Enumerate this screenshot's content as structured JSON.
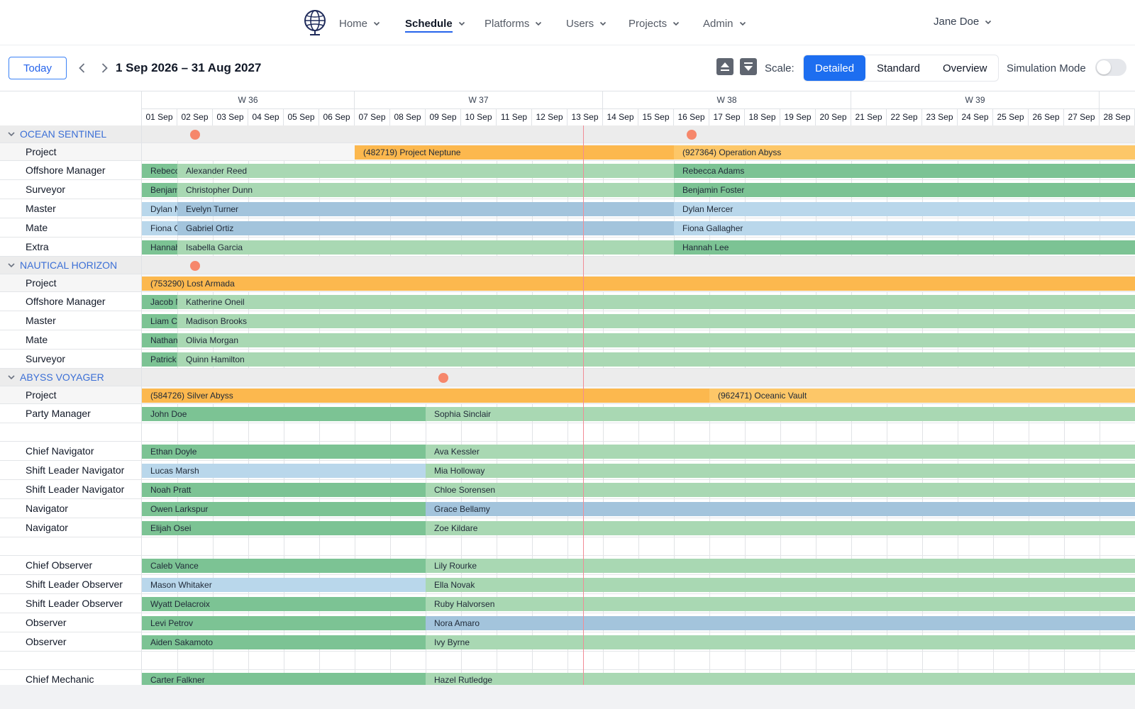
{
  "nav": {
    "logo_icon": "globe-logo-icon",
    "items": [
      {
        "label": "Home",
        "active": false
      },
      {
        "label": "Schedule",
        "active": true
      },
      {
        "label": "Platforms",
        "active": false
      },
      {
        "label": "Users",
        "active": false
      },
      {
        "label": "Projects",
        "active": false
      },
      {
        "label": "Admin",
        "active": false
      }
    ],
    "user": "Jane Doe"
  },
  "toolbar": {
    "today_label": "Today",
    "date_range": "1 Sep 2026 – 31 Aug 2027",
    "expand_icon": "expand-all-icon",
    "collapse_icon": "collapse-all-icon",
    "scale_label": "Scale:",
    "scale_options": [
      "Detailed",
      "Standard",
      "Overview"
    ],
    "scale_selected": "Detailed",
    "simulation_label": "Simulation Mode",
    "simulation_on": false
  },
  "timeline": {
    "weeks": [
      "W 36",
      "W 37",
      "W 38",
      "W 39"
    ],
    "days": [
      "01 Sep",
      "02 Sep",
      "03 Sep",
      "04 Sep",
      "05 Sep",
      "06 Sep",
      "07 Sep",
      "08 Sep",
      "09 Sep",
      "10 Sep",
      "11 Sep",
      "12 Sep",
      "13 Sep",
      "14 Sep",
      "15 Sep",
      "16 Sep",
      "17 Sep",
      "18 Sep",
      "19 Sep",
      "20 Sep",
      "21 Sep",
      "22 Sep",
      "23 Sep",
      "24 Sep",
      "25 Sep",
      "26 Sep",
      "27 Sep",
      "28 Sep"
    ],
    "today": "13 Sep"
  },
  "colors": {
    "project": "#fcb84e",
    "project_alt": "#fdc768",
    "green_dark": "#7cc394",
    "green_light": "#a9d8b3",
    "blue_dark": "#a3c4dc",
    "blue_light": "#b9d7eb",
    "marker": "#f6876b",
    "group_title": "#3b6fd6"
  },
  "rows": [
    {
      "type": "group",
      "label": "OCEAN SENTINEL",
      "markers": [
        "02 Sep",
        "16 Sep"
      ]
    },
    {
      "type": "project",
      "label": "Project",
      "bars": [
        {
          "text": "(482719) Project Neptune",
          "start": "07 Sep",
          "end": "16 Sep",
          "tone": "project"
        },
        {
          "text": "(927364) Operation Abyss",
          "start": "16 Sep",
          "end": "end",
          "tone": "project_alt"
        }
      ]
    },
    {
      "type": "role",
      "label": "Offshore Manager",
      "bars": [
        {
          "text": "Rebecca Adams",
          "start": "01 Sep",
          "end": "02 Sep",
          "tone": "green_dark"
        },
        {
          "text": "Alexander Reed",
          "start": "02 Sep",
          "end": "16 Sep",
          "tone": "green_light"
        },
        {
          "text": "Rebecca Adams",
          "start": "16 Sep",
          "end": "end",
          "tone": "green_dark"
        }
      ]
    },
    {
      "type": "role",
      "label": "Surveyor",
      "bars": [
        {
          "text": "Benjamin Foster",
          "start": "01 Sep",
          "end": "02 Sep",
          "tone": "green_dark"
        },
        {
          "text": "Christopher Dunn",
          "start": "02 Sep",
          "end": "16 Sep",
          "tone": "green_light"
        },
        {
          "text": "Benjamin Foster",
          "start": "16 Sep",
          "end": "end",
          "tone": "green_dark"
        }
      ]
    },
    {
      "type": "role",
      "label": "Master",
      "bars": [
        {
          "text": "Dylan Mercer",
          "start": "01 Sep",
          "end": "02 Sep",
          "tone": "blue_light"
        },
        {
          "text": "Evelyn Turner",
          "start": "02 Sep",
          "end": "16 Sep",
          "tone": "blue_dark"
        },
        {
          "text": "Dylan Mercer",
          "start": "16 Sep",
          "end": "end",
          "tone": "blue_light"
        }
      ]
    },
    {
      "type": "role",
      "label": "Mate",
      "bars": [
        {
          "text": "Fiona Gallagher",
          "start": "01 Sep",
          "end": "02 Sep",
          "tone": "blue_light"
        },
        {
          "text": "Gabriel Ortiz",
          "start": "02 Sep",
          "end": "16 Sep",
          "tone": "blue_dark"
        },
        {
          "text": "Fiona Gallagher",
          "start": "16 Sep",
          "end": "end",
          "tone": "blue_light"
        }
      ]
    },
    {
      "type": "role",
      "label": "Extra",
      "bars": [
        {
          "text": "Hannah Lee",
          "start": "01 Sep",
          "end": "02 Sep",
          "tone": "green_dark"
        },
        {
          "text": "Isabella Garcia",
          "start": "02 Sep",
          "end": "16 Sep",
          "tone": "green_light"
        },
        {
          "text": "Hannah Lee",
          "start": "16 Sep",
          "end": "end",
          "tone": "green_dark"
        }
      ]
    },
    {
      "type": "group",
      "label": "NAUTICAL HORIZON",
      "markers": [
        "02 Sep"
      ]
    },
    {
      "type": "project",
      "label": "Project",
      "bars": [
        {
          "text": "(753290) Lost Armada",
          "start": "01 Sep",
          "end": "end",
          "tone": "project"
        }
      ]
    },
    {
      "type": "role",
      "label": "Offshore Manager",
      "bars": [
        {
          "text": "Jacob Nguyen",
          "start": "01 Sep",
          "end": "02 Sep",
          "tone": "green_dark"
        },
        {
          "text": "Katherine Oneil",
          "start": "02 Sep",
          "end": "end",
          "tone": "green_light"
        }
      ]
    },
    {
      "type": "role",
      "label": "Master",
      "bars": [
        {
          "text": "Liam Campbell",
          "start": "01 Sep",
          "end": "02 Sep",
          "tone": "green_dark"
        },
        {
          "text": "Madison Brooks",
          "start": "02 Sep",
          "end": "end",
          "tone": "green_light"
        }
      ]
    },
    {
      "type": "role",
      "label": "Mate",
      "bars": [
        {
          "text": "Nathaniel Price",
          "start": "01 Sep",
          "end": "02 Sep",
          "tone": "green_dark"
        },
        {
          "text": "Olivia Morgan",
          "start": "02 Sep",
          "end": "end",
          "tone": "green_light"
        }
      ]
    },
    {
      "type": "role",
      "label": "Surveyor",
      "bars": [
        {
          "text": "Patrick Carter",
          "start": "01 Sep",
          "end": "02 Sep",
          "tone": "green_dark"
        },
        {
          "text": "Quinn Hamilton",
          "start": "02 Sep",
          "end": "end",
          "tone": "green_light"
        }
      ]
    },
    {
      "type": "group",
      "label": "ABYSS VOYAGER",
      "markers": [
        "09 Sep"
      ]
    },
    {
      "type": "project",
      "label": "Project",
      "bars": [
        {
          "text": "(584726) Silver Abyss",
          "start": "01 Sep",
          "end": "17 Sep",
          "tone": "project"
        },
        {
          "text": "(962471) Oceanic Vault",
          "start": "17 Sep",
          "end": "end",
          "tone": "project_alt"
        }
      ]
    },
    {
      "type": "role",
      "label": "Party Manager",
      "bars": [
        {
          "text": "John Doe",
          "start": "01 Sep",
          "end": "09 Sep",
          "tone": "green_dark"
        },
        {
          "text": "Sophia Sinclair",
          "start": "09 Sep",
          "end": "end",
          "tone": "green_light"
        }
      ]
    },
    {
      "type": "spacer",
      "label": "",
      "bars": []
    },
    {
      "type": "role",
      "label": "Chief Navigator",
      "bars": [
        {
          "text": "Ethan Doyle",
          "start": "01 Sep",
          "end": "09 Sep",
          "tone": "green_dark"
        },
        {
          "text": "Ava Kessler",
          "start": "09 Sep",
          "end": "end",
          "tone": "green_light"
        }
      ]
    },
    {
      "type": "role",
      "label": "Shift Leader Navigator",
      "bars": [
        {
          "text": "Lucas Marsh",
          "start": "01 Sep",
          "end": "09 Sep",
          "tone": "blue_light"
        },
        {
          "text": "Mia Holloway",
          "start": "09 Sep",
          "end": "end",
          "tone": "green_light"
        }
      ]
    },
    {
      "type": "role",
      "label": "Shift Leader Navigator",
      "bars": [
        {
          "text": "Noah Pratt",
          "start": "01 Sep",
          "end": "09 Sep",
          "tone": "green_dark"
        },
        {
          "text": "Chloe Sorensen",
          "start": "09 Sep",
          "end": "end",
          "tone": "green_light"
        }
      ]
    },
    {
      "type": "role",
      "label": "Navigator",
      "bars": [
        {
          "text": "Owen Larkspur",
          "start": "01 Sep",
          "end": "09 Sep",
          "tone": "green_dark"
        },
        {
          "text": "Grace Bellamy",
          "start": "09 Sep",
          "end": "end",
          "tone": "blue_dark"
        }
      ]
    },
    {
      "type": "role",
      "label": "Navigator",
      "bars": [
        {
          "text": "Elijah Osei",
          "start": "01 Sep",
          "end": "09 Sep",
          "tone": "green_dark"
        },
        {
          "text": "Zoe Kildare",
          "start": "09 Sep",
          "end": "end",
          "tone": "green_light"
        }
      ]
    },
    {
      "type": "spacer",
      "label": "",
      "bars": []
    },
    {
      "type": "role",
      "label": "Chief Observer",
      "bars": [
        {
          "text": "Caleb Vance",
          "start": "01 Sep",
          "end": "09 Sep",
          "tone": "green_dark"
        },
        {
          "text": "Lily Rourke",
          "start": "09 Sep",
          "end": "end",
          "tone": "green_light"
        }
      ]
    },
    {
      "type": "role",
      "label": "Shift Leader Observer",
      "bars": [
        {
          "text": "Mason Whitaker",
          "start": "01 Sep",
          "end": "09 Sep",
          "tone": "blue_light"
        },
        {
          "text": "Ella Novak",
          "start": "09 Sep",
          "end": "end",
          "tone": "green_light"
        }
      ]
    },
    {
      "type": "role",
      "label": "Shift Leader Observer",
      "bars": [
        {
          "text": "Wyatt Delacroix",
          "start": "01 Sep",
          "end": "09 Sep",
          "tone": "green_dark"
        },
        {
          "text": "Ruby Halvorsen",
          "start": "09 Sep",
          "end": "end",
          "tone": "green_light"
        }
      ]
    },
    {
      "type": "role",
      "label": "Observer",
      "bars": [
        {
          "text": "Levi Petrov",
          "start": "01 Sep",
          "end": "09 Sep",
          "tone": "green_dark"
        },
        {
          "text": "Nora Amaro",
          "start": "09 Sep",
          "end": "end",
          "tone": "blue_dark"
        }
      ]
    },
    {
      "type": "role",
      "label": "Observer",
      "bars": [
        {
          "text": "Aiden Sakamoto",
          "start": "01 Sep",
          "end": "09 Sep",
          "tone": "green_dark"
        },
        {
          "text": "Ivy Byrne",
          "start": "09 Sep",
          "end": "end",
          "tone": "green_light"
        }
      ]
    },
    {
      "type": "spacer",
      "label": "",
      "bars": []
    },
    {
      "type": "role",
      "label": "Chief Mechanic",
      "bars": [
        {
          "text": "Carter Falkner",
          "start": "01 Sep",
          "end": "09 Sep",
          "tone": "green_dark"
        },
        {
          "text": "Hazel Rutledge",
          "start": "09 Sep",
          "end": "end",
          "tone": "green_light"
        }
      ]
    }
  ]
}
